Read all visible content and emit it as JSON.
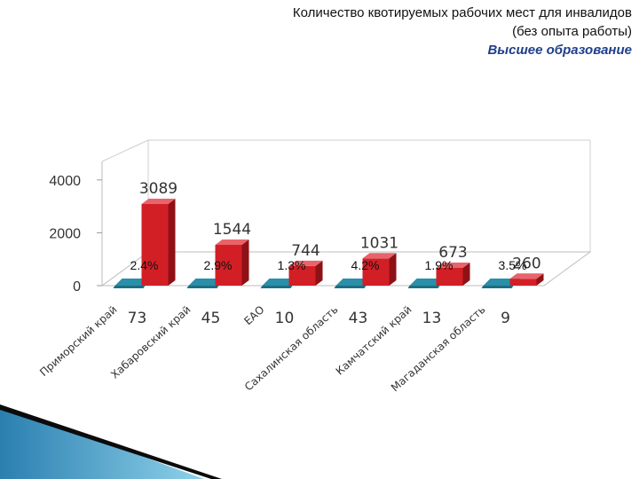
{
  "header": {
    "title_line1": "Количество квотируемых рабочих мест для инвалидов",
    "title_line2": "(без опыта работы)",
    "subtitle": "Высшее образование"
  },
  "chart_data": {
    "type": "bar",
    "categories": [
      "Приморский край",
      "Хабаровский край",
      "ЕАО",
      "Сахалинская область",
      "Камчатский край",
      "Магаданская область"
    ],
    "series": [
      {
        "values": [
          3089,
          1544,
          744,
          1031,
          673,
          260
        ],
        "color": "#d21f26"
      },
      {
        "values": [
          73,
          45,
          10,
          43,
          13,
          9
        ],
        "color": "#2a8fa8"
      }
    ],
    "percent_labels": [
      "2.4%",
      "2.9%",
      "1.3%",
      "4.2%",
      "1.9%",
      "3.5%"
    ],
    "y_ticks": [
      0,
      2000,
      4000
    ],
    "ylim": [
      0,
      4700
    ],
    "xlabel": "",
    "ylabel": "",
    "grid": false,
    "legend": "none"
  }
}
